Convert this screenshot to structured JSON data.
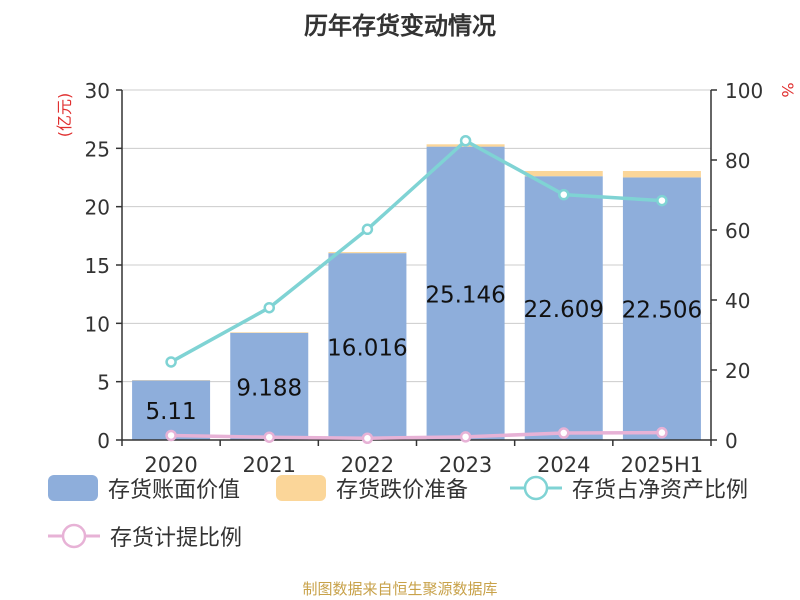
{
  "chart_data": {
    "type": "bar",
    "title": "历年存货变动情况",
    "categories": [
      "2020",
      "2021",
      "2022",
      "2023",
      "2024",
      "2025H1"
    ],
    "ylabel_left": "(亿元)",
    "ylabel_right": "%",
    "ylim_left": [
      0,
      30
    ],
    "ylim_right": [
      0,
      100
    ],
    "yticks_left": [
      "0",
      "5",
      "10",
      "15",
      "20",
      "25",
      "30"
    ],
    "yticks_right": [
      "0",
      "20",
      "40",
      "60",
      "80",
      "100"
    ],
    "grid": true,
    "legend_position": "bottom",
    "series": [
      {
        "name": "存货账面价值",
        "kind": "bar",
        "axis": "left",
        "color": "#8eaedb",
        "values": [
          5.11,
          9.188,
          16.016,
          25.146,
          22.609,
          22.506
        ],
        "labels": [
          "5.11",
          "9.188",
          "16.016",
          "25.146",
          "22.609",
          "22.506"
        ]
      },
      {
        "name": "存货跌价准备",
        "kind": "bar",
        "axis": "left",
        "stacked": true,
        "color": "#fbd699",
        "values": [
          0.03,
          0.05,
          0.09,
          0.2,
          0.45,
          0.55
        ]
      },
      {
        "name": "存货占净资产比例",
        "kind": "line",
        "axis": "right",
        "color": "#7fd3d4",
        "values": [
          22.3,
          37.8,
          60.2,
          85.5,
          70.1,
          68.4
        ]
      },
      {
        "name": "存货计提比例",
        "kind": "line",
        "axis": "right",
        "color": "#e7b2d6",
        "values": [
          1.3,
          0.8,
          0.5,
          0.9,
          2.0,
          2.1
        ]
      }
    ]
  },
  "source_text": "制图数据来自恒生聚源数据库"
}
